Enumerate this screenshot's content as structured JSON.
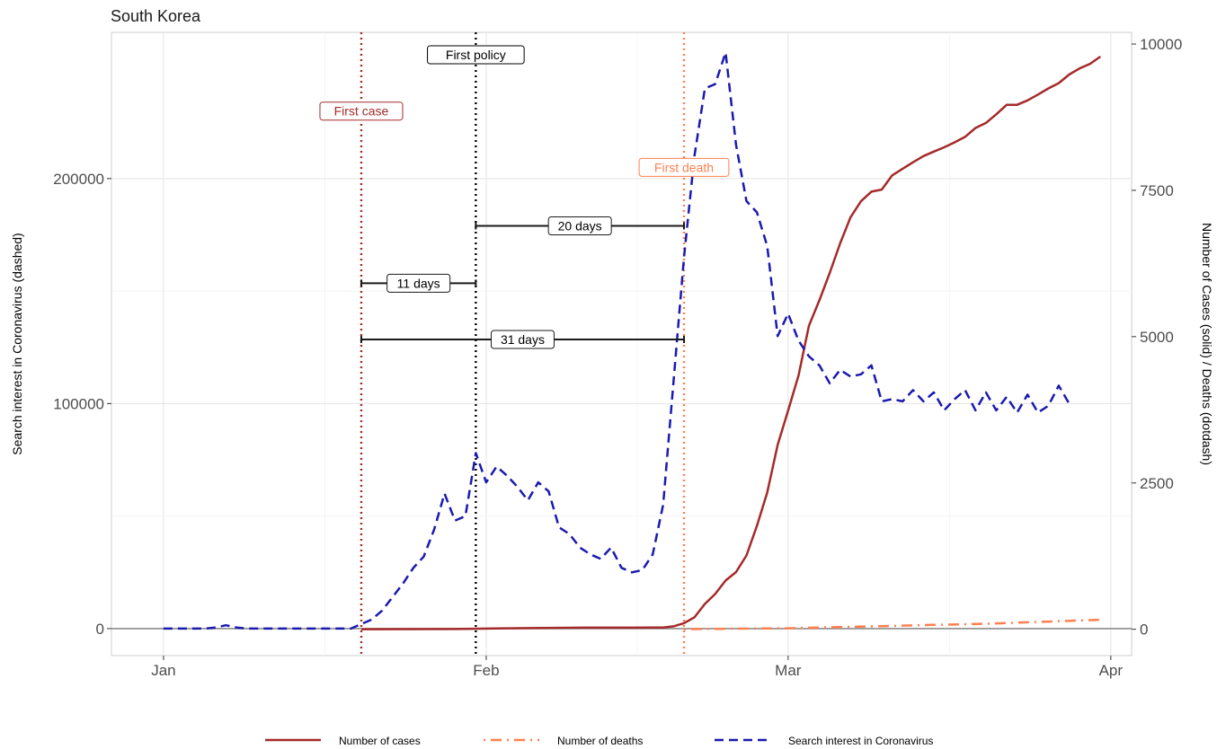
{
  "chart_data": {
    "type": "line",
    "title": "South Korea",
    "x_axis": {
      "ticks": [
        {
          "date": "2020-01-01",
          "label": "Jan"
        },
        {
          "date": "2020-02-01",
          "label": "Feb"
        },
        {
          "date": "2020-03-01",
          "label": "Mar"
        },
        {
          "date": "2020-04-01",
          "label": "Apr"
        }
      ],
      "range": [
        "2019-12-27",
        "2020-04-03"
      ]
    },
    "y_left": {
      "label": "Search interest in Coronavirus (dashed)",
      "range": [
        -12000,
        265000
      ],
      "ticks": [
        {
          "value": 0,
          "label": "0"
        },
        {
          "value": 100000,
          "label": "100000"
        },
        {
          "value": 200000,
          "label": "200000"
        }
      ]
    },
    "y_right": {
      "label": "Number of Cases (solid) / Deaths (dotdash)",
      "range": [
        -450,
        10200
      ],
      "ticks": [
        {
          "value": 0,
          "label": "0"
        },
        {
          "value": 2500,
          "label": "2500"
        },
        {
          "value": 5000,
          "label": "5000"
        },
        {
          "value": 7500,
          "label": "7500"
        },
        {
          "value": 10000,
          "label": "10000"
        }
      ]
    },
    "grid": true,
    "legend_position": "bottom",
    "events": [
      {
        "label": "First case",
        "date": "2020-01-20",
        "color": "#a52a2a",
        "label_y": 230000
      },
      {
        "label": "First policy",
        "date": "2020-01-31",
        "color": "#000000",
        "label_y": 255000
      },
      {
        "label": "First death",
        "date": "2020-02-20",
        "color": "#ff7f50",
        "label_y": 205000
      }
    ],
    "spans": [
      {
        "label": "20 days",
        "start": "2020-01-31",
        "end": "2020-02-20",
        "y": 179000
      },
      {
        "label": "11 days",
        "start": "2020-01-20",
        "end": "2020-01-31",
        "y": 153500
      },
      {
        "label": "31 days",
        "start": "2020-01-20",
        "end": "2020-02-20",
        "y": 128500
      }
    ],
    "series": [
      {
        "name": "Number of cases",
        "style": "solid",
        "color": "#a52a2a",
        "axis": "right",
        "points": [
          [
            "2020-01-20",
            1
          ],
          [
            "2020-01-25",
            3
          ],
          [
            "2020-01-30",
            6
          ],
          [
            "2020-02-02",
            15
          ],
          [
            "2020-02-05",
            19
          ],
          [
            "2020-02-10",
            27
          ],
          [
            "2020-02-15",
            28
          ],
          [
            "2020-02-17",
            30
          ],
          [
            "2020-02-18",
            31
          ],
          [
            "2020-02-19",
            51
          ],
          [
            "2020-02-20",
            104
          ],
          [
            "2020-02-21",
            204
          ],
          [
            "2020-02-22",
            433
          ],
          [
            "2020-02-23",
            602
          ],
          [
            "2020-02-24",
            833
          ],
          [
            "2020-02-25",
            977
          ],
          [
            "2020-02-26",
            1261
          ],
          [
            "2020-02-27",
            1766
          ],
          [
            "2020-02-28",
            2337
          ],
          [
            "2020-02-29",
            3150
          ],
          [
            "2020-03-01",
            3736
          ],
          [
            "2020-03-02",
            4335
          ],
          [
            "2020-03-03",
            5186
          ],
          [
            "2020-03-04",
            5621
          ],
          [
            "2020-03-05",
            6088
          ],
          [
            "2020-03-06",
            6593
          ],
          [
            "2020-03-07",
            7041
          ],
          [
            "2020-03-08",
            7313
          ],
          [
            "2020-03-09",
            7478
          ],
          [
            "2020-03-10",
            7513
          ],
          [
            "2020-03-11",
            7755
          ],
          [
            "2020-03-12",
            7869
          ],
          [
            "2020-03-13",
            7979
          ],
          [
            "2020-03-14",
            8086
          ],
          [
            "2020-03-15",
            8162
          ],
          [
            "2020-03-16",
            8236
          ],
          [
            "2020-03-17",
            8320
          ],
          [
            "2020-03-18",
            8413
          ],
          [
            "2020-03-19",
            8565
          ],
          [
            "2020-03-20",
            8652
          ],
          [
            "2020-03-21",
            8799
          ],
          [
            "2020-03-22",
            8961
          ],
          [
            "2020-03-23",
            8961
          ],
          [
            "2020-03-24",
            9037
          ],
          [
            "2020-03-25",
            9137
          ],
          [
            "2020-03-26",
            9241
          ],
          [
            "2020-03-27",
            9332
          ],
          [
            "2020-03-28",
            9478
          ],
          [
            "2020-03-29",
            9583
          ],
          [
            "2020-03-30",
            9661
          ],
          [
            "2020-03-31",
            9786
          ]
        ]
      },
      {
        "name": "Number of deaths",
        "style": "dotdash",
        "color": "#ff7f50",
        "axis": "right",
        "points": [
          [
            "2020-02-20",
            1
          ],
          [
            "2020-02-25",
            11
          ],
          [
            "2020-03-01",
            17
          ],
          [
            "2020-03-05",
            35
          ],
          [
            "2020-03-10",
            54
          ],
          [
            "2020-03-15",
            75
          ],
          [
            "2020-03-20",
            94
          ],
          [
            "2020-03-25",
            126
          ],
          [
            "2020-03-31",
            162
          ]
        ]
      },
      {
        "name": "Search interest in Coronavirus",
        "style": "dashed",
        "color": "#1a1ab0",
        "axis": "left",
        "points": [
          [
            "2020-01-01",
            0
          ],
          [
            "2020-01-02",
            0
          ],
          [
            "2020-01-03",
            0
          ],
          [
            "2020-01-04",
            0
          ],
          [
            "2020-01-05",
            0
          ],
          [
            "2020-01-06",
            500
          ],
          [
            "2020-01-07",
            1500
          ],
          [
            "2020-01-08",
            500
          ],
          [
            "2020-01-09",
            0
          ],
          [
            "2020-01-10",
            0
          ],
          [
            "2020-01-11",
            0
          ],
          [
            "2020-01-12",
            0
          ],
          [
            "2020-01-13",
            0
          ],
          [
            "2020-01-14",
            0
          ],
          [
            "2020-01-15",
            0
          ],
          [
            "2020-01-16",
            0
          ],
          [
            "2020-01-17",
            0
          ],
          [
            "2020-01-18",
            0
          ],
          [
            "2020-01-19",
            0
          ],
          [
            "2020-01-20",
            2000
          ],
          [
            "2020-01-21",
            4000
          ],
          [
            "2020-01-22",
            8000
          ],
          [
            "2020-01-23",
            14000
          ],
          [
            "2020-01-24",
            20000
          ],
          [
            "2020-01-25",
            27000
          ],
          [
            "2020-01-26",
            32000
          ],
          [
            "2020-01-27",
            44000
          ],
          [
            "2020-01-28",
            60000
          ],
          [
            "2020-01-29",
            48000
          ],
          [
            "2020-01-30",
            50000
          ],
          [
            "2020-01-31",
            78000
          ],
          [
            "2020-02-01",
            65000
          ],
          [
            "2020-02-02",
            72000
          ],
          [
            "2020-02-03",
            68000
          ],
          [
            "2020-02-04",
            63000
          ],
          [
            "2020-02-05",
            57000
          ],
          [
            "2020-02-06",
            65000
          ],
          [
            "2020-02-07",
            61000
          ],
          [
            "2020-02-08",
            45000
          ],
          [
            "2020-02-09",
            42000
          ],
          [
            "2020-02-10",
            36000
          ],
          [
            "2020-02-11",
            33000
          ],
          [
            "2020-02-12",
            31000
          ],
          [
            "2020-02-13",
            36000
          ],
          [
            "2020-02-14",
            27000
          ],
          [
            "2020-02-15",
            25000
          ],
          [
            "2020-02-16",
            26000
          ],
          [
            "2020-02-17",
            33000
          ],
          [
            "2020-02-18",
            55000
          ],
          [
            "2020-02-19",
            110000
          ],
          [
            "2020-02-20",
            165000
          ],
          [
            "2020-02-21",
            210000
          ],
          [
            "2020-02-22",
            240000
          ],
          [
            "2020-02-23",
            242000
          ],
          [
            "2020-02-24",
            256000
          ],
          [
            "2020-02-25",
            215000
          ],
          [
            "2020-02-26",
            190000
          ],
          [
            "2020-02-27",
            185000
          ],
          [
            "2020-02-28",
            170000
          ],
          [
            "2020-02-29",
            130000
          ],
          [
            "2020-03-01",
            140000
          ],
          [
            "2020-03-02",
            128000
          ],
          [
            "2020-03-03",
            121000
          ],
          [
            "2020-03-04",
            117000
          ],
          [
            "2020-03-05",
            109000
          ],
          [
            "2020-03-06",
            115000
          ],
          [
            "2020-03-07",
            112000
          ],
          [
            "2020-03-08",
            113000
          ],
          [
            "2020-03-09",
            117000
          ],
          [
            "2020-03-10",
            101000
          ],
          [
            "2020-03-11",
            102000
          ],
          [
            "2020-03-12",
            101000
          ],
          [
            "2020-03-13",
            106000
          ],
          [
            "2020-03-14",
            101000
          ],
          [
            "2020-03-15",
            105000
          ],
          [
            "2020-03-16",
            97000
          ],
          [
            "2020-03-17",
            102000
          ],
          [
            "2020-03-18",
            106000
          ],
          [
            "2020-03-19",
            97000
          ],
          [
            "2020-03-20",
            105000
          ],
          [
            "2020-03-21",
            97000
          ],
          [
            "2020-03-22",
            103000
          ],
          [
            "2020-03-23",
            96000
          ],
          [
            "2020-03-24",
            104000
          ],
          [
            "2020-03-25",
            96000
          ],
          [
            "2020-03-26",
            99000
          ],
          [
            "2020-03-27",
            108000
          ],
          [
            "2020-03-28",
            100000
          ]
        ]
      }
    ]
  }
}
